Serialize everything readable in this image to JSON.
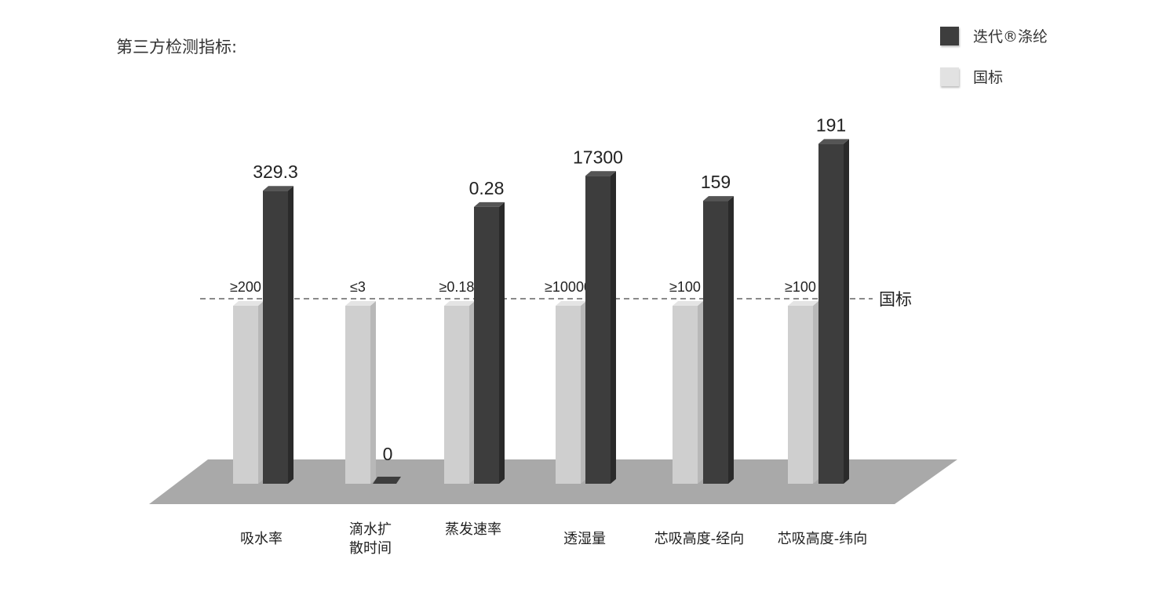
{
  "chart_data": {
    "type": "bar",
    "title": "第三方检测指标:",
    "categories": [
      "吸水率",
      "滴水扩散时间",
      "蒸发速率",
      "透湿量",
      "芯吸高度-经向",
      "芯吸高度-纬向"
    ],
    "series": [
      {
        "name": "迭代®涤纶",
        "color": "#3d3d3d",
        "values": [
          329.3,
          0,
          0.28,
          17300,
          159,
          191
        ],
        "labels": [
          "329.3",
          "0",
          "0.28",
          "17300",
          "159",
          "191"
        ]
      },
      {
        "name": "国标",
        "color": "#d0d0d0",
        "values": [
          200,
          3,
          0.18,
          10000,
          100,
          100
        ],
        "labels": [
          "≥200",
          "≤3",
          "≥0.18",
          "≥10000",
          "≥100",
          "≥100"
        ]
      }
    ],
    "reference_line": {
      "label": "国标",
      "style": "dashed"
    },
    "legend": "top-right",
    "grid": false,
    "style": "3d-normalized"
  },
  "legend_colors": {
    "brand": "#3d3d3d",
    "standard": "#e2e2e2"
  }
}
